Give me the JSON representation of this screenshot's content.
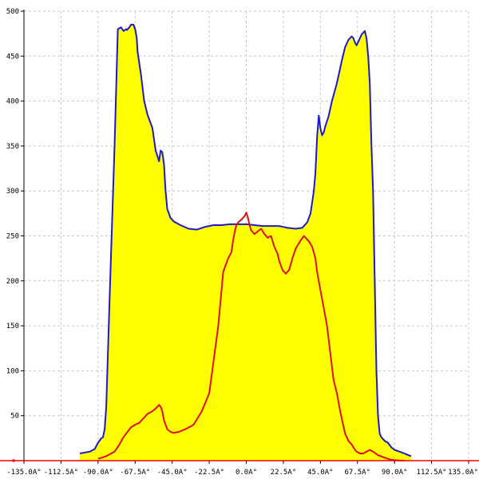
{
  "chart_data": {
    "type": "area",
    "title": "",
    "xlabel": "",
    "ylabel": "",
    "xlim": [
      -135,
      135
    ],
    "ylim": [
      0,
      500
    ],
    "grid": true,
    "x_ticks": [
      {
        "value": -135,
        "label": "-135.0A°"
      },
      {
        "value": -112.5,
        "label": "-112.5A°"
      },
      {
        "value": -90,
        "label": "-90.0A°"
      },
      {
        "value": -67.5,
        "label": "-67.5A°"
      },
      {
        "value": -45,
        "label": "-45.0A°"
      },
      {
        "value": -22.5,
        "label": "-22.5A°"
      },
      {
        "value": 0,
        "label": "0.0A°"
      },
      {
        "value": 22.5,
        "label": "22.5A°"
      },
      {
        "value": 45,
        "label": "45.0A°"
      },
      {
        "value": 67.5,
        "label": "67.5A°"
      },
      {
        "value": 90,
        "label": "90.0A°"
      },
      {
        "value": 112.5,
        "label": "112.5A°"
      },
      {
        "value": 135,
        "label": "135.0A°"
      }
    ],
    "y_ticks": [
      {
        "value": 50,
        "label": "50"
      },
      {
        "value": 100,
        "label": "100"
      },
      {
        "value": 150,
        "label": "150"
      },
      {
        "value": 200,
        "label": "200"
      },
      {
        "value": 250,
        "label": "250"
      },
      {
        "value": 300,
        "label": "300"
      },
      {
        "value": 350,
        "label": "350"
      },
      {
        "value": 400,
        "label": "400"
      },
      {
        "value": 450,
        "label": "450"
      },
      {
        "value": 500,
        "label": "500"
      }
    ],
    "series": [
      {
        "color": "#1a1acc",
        "fill": "#ffff00",
        "x": [
          -101,
          -95,
          -92,
          -90,
          -88,
          -87,
          -86,
          -85,
          -83,
          -80,
          -78,
          -76,
          -74.5,
          -73,
          -72.5,
          -71,
          -70,
          -68.5,
          -67.5,
          -66.5,
          -66,
          -64,
          -62,
          -60,
          -57,
          -55,
          -53,
          -52,
          -51,
          -50,
          -49,
          -48,
          -47,
          -46,
          -45,
          -44,
          -42,
          -40,
          -35,
          -30,
          -25,
          -22.5,
          -20,
          -15,
          -10,
          -5,
          0,
          5,
          10,
          15,
          20,
          22.5,
          25,
          30,
          34,
          37,
          39,
          41,
          42,
          43,
          44,
          45,
          46,
          47,
          48,
          50,
          52,
          55,
          58,
          60,
          62,
          64,
          65,
          66,
          67,
          68,
          70,
          71,
          72,
          73,
          74,
          75,
          76,
          77,
          78,
          79,
          80,
          81,
          82,
          84,
          86,
          88,
          90,
          93,
          96,
          100
        ],
        "y": [
          8,
          10,
          13,
          20,
          25,
          26,
          35,
          60,
          180,
          350,
          480,
          482,
          478,
          480,
          479,
          482,
          485,
          485,
          480,
          470,
          455,
          430,
          400,
          385,
          370,
          345,
          333,
          345,
          343,
          330,
          300,
          280,
          275,
          270,
          268,
          266,
          264,
          262,
          258,
          257,
          260,
          261,
          262,
          262,
          263,
          263,
          263,
          262,
          261,
          261,
          261,
          260,
          259,
          258,
          259,
          265,
          275,
          300,
          320,
          360,
          384,
          370,
          362,
          365,
          372,
          383,
          400,
          420,
          445,
          460,
          468,
          472,
          470,
          465,
          462,
          466,
          474,
          476,
          478,
          470,
          450,
          420,
          350,
          300,
          200,
          100,
          50,
          30,
          26,
          22,
          20,
          15,
          12,
          10,
          8,
          5
        ]
      },
      {
        "color": "#dd1111",
        "x": [
          -90,
          -85,
          -80,
          -77,
          -75,
          -73,
          -70,
          -67.5,
          -65,
          -62,
          -60,
          -57,
          -55,
          -53,
          -52,
          -51,
          -50,
          -48,
          -46,
          -44,
          -41,
          -37,
          -32,
          -27,
          -22.5,
          -17,
          -14,
          -11,
          -9,
          -8,
          -7,
          -6,
          -5,
          -3,
          -1,
          0,
          1,
          2,
          3,
          5,
          7,
          9,
          11,
          13,
          15,
          17,
          19,
          20,
          22,
          24,
          26,
          28,
          30,
          33,
          35,
          38,
          40,
          42,
          43,
          45,
          47,
          49,
          51,
          53,
          55,
          57,
          60,
          62,
          64,
          65,
          66,
          67,
          68,
          69,
          71,
          73,
          75,
          77,
          80,
          83,
          86,
          88,
          90,
          93,
          96
        ],
        "y": [
          2,
          5,
          10,
          18,
          25,
          30,
          37,
          40,
          42,
          48,
          52,
          55,
          58,
          62,
          60,
          55,
          45,
          35,
          32,
          31,
          32,
          35,
          40,
          55,
          75,
          150,
          210,
          225,
          232,
          245,
          255,
          262,
          265,
          268,
          272,
          276,
          270,
          262,
          256,
          252,
          255,
          258,
          252,
          248,
          250,
          238,
          230,
          222,
          212,
          208,
          212,
          225,
          236,
          245,
          250,
          244,
          238,
          225,
          210,
          190,
          170,
          150,
          120,
          90,
          75,
          55,
          30,
          22,
          18,
          15,
          12,
          10,
          9,
          8,
          8,
          10,
          12,
          10,
          6,
          4,
          2,
          1,
          0.5,
          0.2,
          0
        ]
      }
    ]
  }
}
